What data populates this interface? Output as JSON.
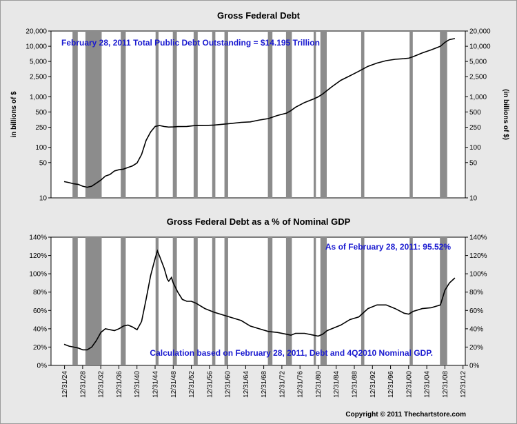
{
  "chart_data": [
    {
      "type": "line",
      "title": "Gross Federal Debt",
      "ylabel_left": "in billions of $",
      "ylabel_right": "(in billions of $)",
      "yscale": "log",
      "ylim": [
        10,
        20000
      ],
      "yticks": [
        10,
        50,
        100,
        250,
        500,
        1000,
        2500,
        5000,
        10000,
        20000
      ],
      "ytick_labels": [
        "10",
        "50",
        "100",
        "250",
        "500",
        "1,000",
        "2,500",
        "5,000",
        "10,000",
        "20,000"
      ],
      "annotation": "February 28, 2011 Total Public Debt Outstanding = $14.195 Trillion",
      "series": [
        {
          "name": "Gross Federal Debt",
          "x": [
            1924.9,
            1926,
            1927,
            1928,
            1929,
            1930,
            1931,
            1932,
            1933,
            1934,
            1935,
            1936,
            1937,
            1938,
            1939,
            1940,
            1941,
            1942,
            1943,
            1944,
            1945,
            1946,
            1947,
            1948,
            1949,
            1950,
            1952,
            1954,
            1956,
            1958,
            1960,
            1962,
            1964,
            1966,
            1968,
            1970,
            1972,
            1974,
            1975,
            1976,
            1978,
            1980,
            1981,
            1982,
            1984,
            1986,
            1988,
            1990,
            1992,
            1994,
            1996,
            1998,
            2000,
            2001,
            2002,
            2004,
            2006,
            2008,
            2009,
            2010,
            2011.2
          ],
          "values": [
            21,
            20,
            19,
            18.5,
            17,
            16.2,
            17,
            19.5,
            22.5,
            27,
            29,
            34,
            36,
            37,
            40,
            43,
            49,
            72,
            137,
            201,
            259,
            270,
            258,
            252,
            253,
            257,
            259,
            271,
            270,
            276,
            286,
            298,
            312,
            319,
            347,
            370,
            427,
            475,
            533,
            620,
            770,
            907,
            995,
            1137,
            1572,
            2120,
            2600,
            3206,
            4001,
            4643,
            5181,
            5526,
            5674,
            5807,
            6228,
            7379,
            8507,
            9986,
            11900,
            13500,
            14195
          ]
        }
      ],
      "recessions": [
        [
          1926.75,
          1927.9
        ],
        [
          1929.6,
          1933.2
        ],
        [
          1937.4,
          1938.5
        ],
        [
          1945.1,
          1945.75
        ],
        [
          1948.9,
          1949.8
        ],
        [
          1953.5,
          1954.4
        ],
        [
          1957.6,
          1958.3
        ],
        [
          1960.3,
          1961.1
        ],
        [
          1969.9,
          1970.9
        ],
        [
          1973.9,
          1975.2
        ],
        [
          1980.0,
          1980.5
        ],
        [
          1981.5,
          1982.9
        ],
        [
          1990.5,
          1991.2
        ],
        [
          2001.2,
          2001.9
        ],
        [
          2007.9,
          2009.5
        ]
      ],
      "legend": ""
    },
    {
      "type": "line",
      "title": "Gross Federal Debt as a % of Nominal GDP",
      "ylim": [
        0,
        140
      ],
      "yticks": [
        0,
        20,
        40,
        60,
        80,
        100,
        120,
        140
      ],
      "ytick_labels": [
        "0%",
        "20%",
        "40%",
        "60%",
        "80%",
        "100%",
        "120%",
        "140%"
      ],
      "annotation_top": "As of February 28, 2011:  95.52%",
      "annotation_bottom": "Calculation based on February 28, 2011, Debt and 4Q2010 Nominal GDP.",
      "series": [
        {
          "name": "Debt % of GDP",
          "x": [
            1924.9,
            1926,
            1927,
            1928,
            1929,
            1930,
            1931,
            1932,
            1933,
            1934,
            1935,
            1936,
            1937,
            1938,
            1939,
            1940,
            1941,
            1942,
            1943,
            1944,
            1945,
            1945.5,
            1946,
            1947,
            1947.7,
            1948,
            1948.6,
            1949,
            1950,
            1951,
            1952,
            1953,
            1954,
            1956,
            1958,
            1960,
            1962,
            1964,
            1966,
            1968,
            1970,
            1972,
            1974,
            1975,
            1976,
            1978,
            1980,
            1981,
            1982,
            1983,
            1984,
            1986,
            1988,
            1990,
            1992,
            1994,
            1996,
            1998,
            2000,
            2001,
            2002,
            2004,
            2006,
            2008,
            2009,
            2010,
            2011.2
          ],
          "values": [
            23,
            21,
            20,
            19,
            17,
            17,
            20,
            27,
            36,
            40,
            39,
            38,
            40,
            43,
            44,
            42,
            39,
            48,
            72,
            98,
            117,
            125,
            119,
            106,
            94,
            92,
            96,
            90,
            80,
            72,
            70,
            70,
            68,
            62,
            58,
            55,
            52,
            49,
            43,
            40,
            37,
            36,
            34,
            33,
            35,
            35,
            33,
            32,
            34,
            38,
            40,
            44,
            50,
            53,
            62,
            66,
            66,
            62,
            57,
            56,
            59,
            62,
            63,
            66,
            82,
            90,
            95.52
          ]
        }
      ],
      "recessions": [
        [
          1926.75,
          1927.9
        ],
        [
          1929.6,
          1933.2
        ],
        [
          1937.4,
          1938.5
        ],
        [
          1945.1,
          1945.75
        ],
        [
          1948.9,
          1949.8
        ],
        [
          1953.5,
          1954.4
        ],
        [
          1957.6,
          1958.3
        ],
        [
          1960.3,
          1961.1
        ],
        [
          1969.9,
          1970.9
        ],
        [
          1973.9,
          1975.2
        ],
        [
          1980.0,
          1980.5
        ],
        [
          1981.5,
          1982.9
        ],
        [
          1990.5,
          1991.2
        ],
        [
          2001.2,
          2001.9
        ],
        [
          2007.9,
          2009.5
        ]
      ],
      "legend": ""
    }
  ],
  "xaxis": {
    "xlim": [
      1922,
      2013.5
    ],
    "tick_years": [
      1924,
      1928,
      1932,
      1936,
      1940,
      1944,
      1948,
      1952,
      1956,
      1960,
      1964,
      1968,
      1972,
      1976,
      1980,
      1984,
      1988,
      1992,
      1996,
      2000,
      2004,
      2008,
      2012
    ],
    "tick_labels": [
      "12/31/24",
      "12/31/28",
      "12/31/32",
      "12/31/36",
      "12/31/40",
      "12/31/44",
      "12/31/48",
      "12/31/52",
      "12/31/56",
      "12/31/60",
      "12/31/64",
      "12/31/68",
      "12/31/72",
      "12/31/76",
      "12/31/80",
      "12/31/84",
      "12/31/88",
      "12/31/92",
      "12/31/96",
      "12/31/00",
      "12/31/04",
      "12/31/08",
      "12/31/12"
    ]
  },
  "copyright": "Copyright © 2011 Thechartstore.com",
  "colors": {
    "background": "#e8e8e8",
    "plot": "#ffffff",
    "recession": "#8c8c8c",
    "line": "#000000",
    "annotation": "#1a1ad0"
  }
}
